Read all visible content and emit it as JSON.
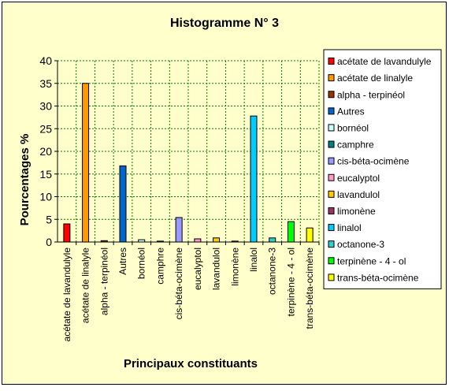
{
  "chart_data": {
    "type": "bar",
    "title": "Histogramme N° 3",
    "xlabel": "Principaux constituants",
    "ylabel": "Pourcentages %",
    "ylim": [
      0,
      40
    ],
    "yticks": [
      0,
      5,
      10,
      15,
      20,
      25,
      30,
      35,
      40
    ],
    "grid": true,
    "legend_position": "right",
    "background_color": "#ffffcc",
    "plot_background_color": "#ffffcc",
    "categories": [
      "acétate de lavandulyle",
      "acétate de linalyle",
      "alpha - terpinéol",
      "Autres",
      "bornéol",
      "camphre",
      "cis-béta-ocimène",
      "eucalyptol",
      "lavandulol",
      "limonène",
      "linalol",
      "octanone-3",
      "terpinène - 4 - ol",
      "trans-béta-ocimène"
    ],
    "values": [
      4.0,
      35.0,
      0.3,
      16.8,
      0.5,
      0.2,
      5.4,
      0.7,
      0.9,
      0.2,
      27.8,
      0.9,
      4.5,
      3.1
    ],
    "colors": [
      "#ff0000",
      "#ff9900",
      "#993300",
      "#0066cc",
      "#ccffff",
      "#008080",
      "#9999ff",
      "#ff99cc",
      "#ffcc00",
      "#993366",
      "#00ccff",
      "#33cccc",
      "#00ff00",
      "#ffff00"
    ],
    "legend": [
      "acétate de lavandulyle",
      "acétate de linalyle",
      "alpha - terpinéol",
      "Autres",
      "bornéol",
      "camphre",
      "cis-béta-ocimène",
      "eucalyptol",
      "lavandulol",
      "limonène",
      "linalol",
      "octanone-3",
      "terpinène - 4 - ol",
      "trans-béta-ocimène"
    ]
  }
}
